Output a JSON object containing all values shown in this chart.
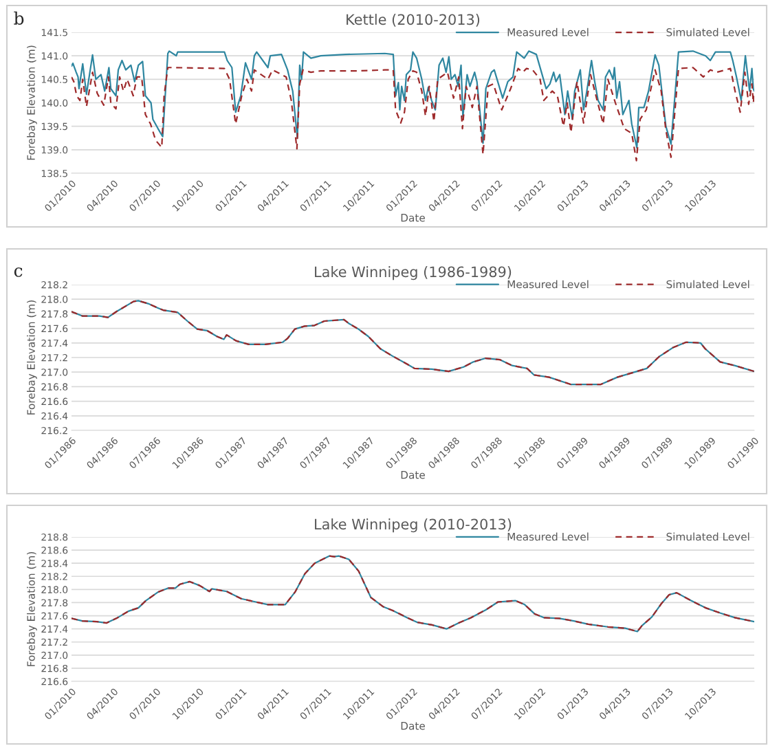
{
  "chart_data": [
    {
      "type": "line",
      "title": "Kettle (2010-2013)",
      "xlabel": "Date",
      "ylabel": "Forebay Elevation (m)",
      "annotations": [
        "b"
      ],
      "xlim": [
        "2010-01-01",
        "2013-12-31"
      ],
      "ylim": [
        138.5,
        141.5
      ],
      "yticks": [
        138.5,
        {
          "value": 139,
          "label": "139.0"
        },
        139.5,
        {
          "value": 140,
          "label": "140.0"
        },
        140.5,
        {
          "value": 141,
          "label": "141.0"
        },
        141.5
      ],
      "xticks": [
        {
          "value": "2010-01",
          "label": "01/2010"
        },
        {
          "value": "2010-04",
          "label": "04/2010"
        },
        {
          "value": "2010-07",
          "label": "07/2010"
        },
        {
          "value": "2010-10",
          "label": "10/2010"
        },
        {
          "value": "2011-01",
          "label": "01/2011"
        },
        {
          "value": "2011-04",
          "label": "04/2011"
        },
        {
          "value": "2011-07",
          "label": "07/2011"
        },
        {
          "value": "2011-10",
          "label": "10/2011"
        },
        {
          "value": "2012-01",
          "label": "01/2012"
        },
        {
          "value": "2012-04",
          "label": "04/2012"
        },
        {
          "value": "2012-07",
          "label": "07/2012"
        },
        {
          "value": "2012-10",
          "label": "10/2012"
        },
        {
          "value": "2013-01",
          "label": "01/2013"
        },
        {
          "value": "2013-04",
          "label": "04/2013"
        },
        {
          "value": "2013-07",
          "label": "07/2013"
        },
        {
          "value": "2013-10",
          "label": "10/2013"
        }
      ],
      "grid": "y",
      "legend": "top right",
      "marker": "none",
      "series": [
        {
          "name": "Measured Level",
          "color": "#2e86a0",
          "line_style": "solid",
          "x": [
            "2010-01-01",
            "2010-01-04",
            "2010-01-11",
            "2010-01-15",
            "2010-01-17",
            "2010-01-25",
            "2010-02-02",
            "2010-02-15",
            "2010-02-22",
            "2010-03-05",
            "2010-03-13",
            "2010-03-22",
            "2010-03-26",
            "2010-04-06",
            "2010-04-11",
            "2010-04-19",
            "2010-04-27",
            "2010-05-08",
            "2010-05-16",
            "2010-05-24",
            "2010-06-02",
            "2010-06-08",
            "2010-06-20",
            "2010-06-24",
            "2010-07-05",
            "2010-07-15",
            "2010-07-26",
            "2010-07-29",
            "2010-08-13",
            "2010-08-16",
            "2010-11-24",
            "2010-11-30",
            "2010-12-10",
            "2010-12-18",
            "2010-12-29",
            "2011-01-08",
            "2011-01-21",
            "2011-01-27",
            "2011-02-01",
            "2011-02-25",
            "2011-03-02",
            "2011-03-26",
            "2011-04-08",
            "2011-04-19",
            "2011-04-29",
            "2011-05-04",
            "2011-05-08",
            "2011-05-12",
            "2011-05-28",
            "2011-06-18",
            "2011-08-10",
            "2011-11-02",
            "2011-11-20",
            "2011-11-25",
            "2011-12-01",
            "2011-12-04",
            "2011-12-08",
            "2011-12-14",
            "2011-12-18",
            "2011-12-27",
            "2012-01-01",
            "2012-01-09",
            "2012-01-20",
            "2012-01-28",
            "2012-02-03",
            "2012-02-10",
            "2012-02-18",
            "2012-02-26",
            "2012-03-05",
            "2012-03-12",
            "2012-03-18",
            "2012-03-23",
            "2012-03-31",
            "2012-04-07",
            "2012-04-13",
            "2012-04-17",
            "2012-04-26",
            "2012-05-02",
            "2012-05-12",
            "2012-05-17",
            "2012-05-30",
            "2012-06-05",
            "2012-06-17",
            "2012-06-23",
            "2012-07-11",
            "2012-07-22",
            "2012-08-02",
            "2012-08-10",
            "2012-08-26",
            "2012-09-05",
            "2012-09-21",
            "2012-10-02",
            "2012-10-12",
            "2012-10-20",
            "2012-10-28",
            "2012-11-02",
            "2012-11-10",
            "2012-11-21",
            "2012-11-27",
            "2012-12-07",
            "2012-12-12",
            "2012-12-24",
            "2012-12-31",
            "2013-01-07",
            "2013-01-17",
            "2013-01-23",
            "2013-01-31",
            "2013-02-11",
            "2013-02-16",
            "2013-02-24",
            "2013-03-04",
            "2013-03-07",
            "2013-03-12",
            "2013-03-18",
            "2013-03-25",
            "2013-04-07",
            "2013-04-13",
            "2013-04-24",
            "2013-04-28",
            "2013-05-09",
            "2013-05-19",
            "2013-06-02",
            "2013-06-10",
            "2013-06-25",
            "2013-07-06",
            "2013-07-22",
            "2013-08-22",
            "2013-09-18",
            "2013-09-28",
            "2013-10-09",
            "2013-11-10",
            "2013-11-15",
            "2013-11-23",
            "2013-12-03",
            "2013-12-12",
            "2013-12-21",
            "2013-12-26",
            "2013-12-29",
            "2013-12-31"
          ],
          "values": [
            140.78,
            140.84,
            140.65,
            140.55,
            140.3,
            140.83,
            140.18,
            141.02,
            140.5,
            140.6,
            140.25,
            140.75,
            140.3,
            140.15,
            140.7,
            140.9,
            140.7,
            140.8,
            140.45,
            140.8,
            140.88,
            140.15,
            140.0,
            139.65,
            139.45,
            139.28,
            141.05,
            141.1,
            141.0,
            141.08,
            141.08,
            140.9,
            140.75,
            139.8,
            140.15,
            140.85,
            140.5,
            141.0,
            141.08,
            140.75,
            141.0,
            141.03,
            140.7,
            140.25,
            139.25,
            140.8,
            140.5,
            141.08,
            140.95,
            141.0,
            141.03,
            141.05,
            141.03,
            140.15,
            140.43,
            139.85,
            140.35,
            140.05,
            140.6,
            140.7,
            141.08,
            140.95,
            140.5,
            140.05,
            140.33,
            140.05,
            139.85,
            140.8,
            140.95,
            140.65,
            140.98,
            140.5,
            140.6,
            140.35,
            140.8,
            139.7,
            140.6,
            140.35,
            140.65,
            140.45,
            139.14,
            140.3,
            140.65,
            140.7,
            140.1,
            140.45,
            140.55,
            141.08,
            140.95,
            141.1,
            141.03,
            140.65,
            140.3,
            140.4,
            140.65,
            140.45,
            140.6,
            139.75,
            140.25,
            139.65,
            140.25,
            140.7,
            139.85,
            140.25,
            140.9,
            140.5,
            140.05,
            139.85,
            140.55,
            140.7,
            140.5,
            140.75,
            140.1,
            140.45,
            139.75,
            140.05,
            139.55,
            139.04,
            139.9,
            139.9,
            140.25,
            141.02,
            140.8,
            139.5,
            139.12,
            141.08,
            141.1,
            141.0,
            140.9,
            141.08,
            141.08,
            140.9,
            140.55,
            140.05,
            141.0,
            140.25,
            140.73,
            140.3,
            140.25
          ]
        },
        {
          "name": "Simulated Level",
          "color": "#9e2a2b",
          "line_style": "dashed",
          "x": [
            "2010-01-01",
            "2010-01-06",
            "2010-01-12",
            "2010-01-19",
            "2010-01-25",
            "2010-02-02",
            "2010-02-15",
            "2010-02-25",
            "2010-03-11",
            "2010-03-21",
            "2010-03-26",
            "2010-04-06",
            "2010-04-14",
            "2010-04-22",
            "2010-04-30",
            "2010-05-13",
            "2010-05-21",
            "2010-05-31",
            "2010-06-08",
            "2010-06-19",
            "2010-06-30",
            "2010-07-13",
            "2010-07-18",
            "2010-07-26",
            "2010-08-05",
            "2010-11-24",
            "2010-12-05",
            "2010-12-18",
            "2010-12-31",
            "2011-01-11",
            "2011-01-21",
            "2011-01-27",
            "2011-02-25",
            "2011-03-07",
            "2011-04-05",
            "2011-04-16",
            "2011-04-28",
            "2011-05-04",
            "2011-05-11",
            "2011-05-28",
            "2011-06-18",
            "2011-09-05",
            "2011-11-02",
            "2011-11-20",
            "2011-11-25",
            "2011-12-06",
            "2011-12-14",
            "2011-12-22",
            "2012-01-01",
            "2012-01-09",
            "2012-01-20",
            "2012-01-28",
            "2012-02-05",
            "2012-02-15",
            "2012-02-23",
            "2012-03-15",
            "2012-03-28",
            "2012-04-08",
            "2012-04-16",
            "2012-04-24",
            "2012-05-07",
            "2012-05-17",
            "2012-05-30",
            "2012-06-10",
            "2012-06-21",
            "2012-07-09",
            "2012-07-28",
            "2012-08-13",
            "2012-08-23",
            "2012-08-31",
            "2012-09-13",
            "2012-09-29",
            "2012-10-07",
            "2012-10-25",
            "2012-11-05",
            "2012-11-18",
            "2012-11-26",
            "2012-12-04",
            "2012-12-17",
            "2012-12-31",
            "2013-01-15",
            "2013-01-29",
            "2013-02-11",
            "2013-02-21",
            "2013-03-09",
            "2013-03-28",
            "2013-04-13",
            "2013-04-23",
            "2013-05-01",
            "2013-05-14",
            "2013-06-02",
            "2013-06-15",
            "2013-06-25",
            "2013-07-06",
            "2013-07-22",
            "2013-08-22",
            "2013-09-13",
            "2013-09-28",
            "2013-10-12",
            "2013-11-10",
            "2013-11-20",
            "2013-12-01",
            "2013-12-11",
            "2013-12-19",
            "2013-12-26",
            "2013-12-29",
            "2013-12-31"
          ],
          "values": [
            140.55,
            140.45,
            140.15,
            140.05,
            140.5,
            139.92,
            140.65,
            140.2,
            139.95,
            140.55,
            140.0,
            139.87,
            140.55,
            140.25,
            140.5,
            140.15,
            140.55,
            140.55,
            139.75,
            139.55,
            139.2,
            139.05,
            140.15,
            140.75,
            140.75,
            140.73,
            140.5,
            139.55,
            140.15,
            140.5,
            140.25,
            140.7,
            140.5,
            140.7,
            140.55,
            140.05,
            139.02,
            140.4,
            140.7,
            140.65,
            140.68,
            140.68,
            140.7,
            140.7,
            139.85,
            139.57,
            139.8,
            140.5,
            140.68,
            140.65,
            140.25,
            139.72,
            140.35,
            139.6,
            140.5,
            140.65,
            140.1,
            140.55,
            139.45,
            140.35,
            139.9,
            140.35,
            138.9,
            140.35,
            140.4,
            139.85,
            140.3,
            140.73,
            140.65,
            140.73,
            140.7,
            140.5,
            140.05,
            140.25,
            140.15,
            139.5,
            140.0,
            139.37,
            140.45,
            139.57,
            140.6,
            140.05,
            139.55,
            140.5,
            140.0,
            139.45,
            139.35,
            138.77,
            139.65,
            139.85,
            140.7,
            140.25,
            139.42,
            138.84,
            140.73,
            140.75,
            140.55,
            140.7,
            140.65,
            140.73,
            140.25,
            139.8,
            140.65,
            139.97,
            140.4,
            140.0,
            140.15
          ]
        }
      ]
    },
    {
      "type": "line",
      "title": "Lake Winnipeg (1986-1989)",
      "xlabel": "Date",
      "ylabel": "Forebay Elevation (m)",
      "annotations": [
        "c"
      ],
      "xlim": [
        "1986-01-01",
        "1990-01-01"
      ],
      "ylim": [
        216.2,
        218.2
      ],
      "yticks": [
        216.2,
        216.4,
        216.6,
        216.8,
        {
          "value": 217,
          "label": "217.0"
        },
        217.2,
        217.4,
        217.6,
        217.8,
        {
          "value": 218,
          "label": "218.0"
        },
        218.2
      ],
      "xticks": [
        {
          "value": "1986-01",
          "label": "01/1986"
        },
        {
          "value": "1986-04",
          "label": "04/1986"
        },
        {
          "value": "1986-07",
          "label": "07/1986"
        },
        {
          "value": "1986-10",
          "label": "10/1986"
        },
        {
          "value": "1987-01",
          "label": "01/1987"
        },
        {
          "value": "1987-04",
          "label": "04/1987"
        },
        {
          "value": "1987-07",
          "label": "07/1987"
        },
        {
          "value": "1987-10",
          "label": "10/1987"
        },
        {
          "value": "1988-01",
          "label": "01/1988"
        },
        {
          "value": "1988-04",
          "label": "04/1988"
        },
        {
          "value": "1988-07",
          "label": "07/1988"
        },
        {
          "value": "1988-10",
          "label": "10/1988"
        },
        {
          "value": "1989-01",
          "label": "01/1989"
        },
        {
          "value": "1989-04",
          "label": "04/1989"
        },
        {
          "value": "1989-07",
          "label": "07/1989"
        },
        {
          "value": "1989-10",
          "label": "10/1989"
        },
        {
          "value": "1990-01",
          "label": "01/1990"
        }
      ],
      "grid": "y",
      "legend": "top right",
      "marker": "none",
      "series": [
        {
          "name": "Measured Level",
          "color": "#2e86a0",
          "line_style": "solid",
          "x": [
            "1986-01-01",
            "1986-01-24",
            "1986-03-02",
            "1986-03-20",
            "1986-04-07",
            "1986-05-14",
            "1986-05-24",
            "1986-06-14",
            "1986-07-05",
            "1986-07-16",
            "1986-08-16",
            "1986-09-06",
            "1986-09-27",
            "1986-10-18",
            "1986-11-08",
            "1986-11-23",
            "1986-11-29",
            "1986-12-19",
            "1987-01-15",
            "1987-02-20",
            "1987-03-29",
            "1987-04-08",
            "1987-04-24",
            "1987-05-15",
            "1987-06-05",
            "1987-06-26",
            "1987-08-07",
            "1987-08-17",
            "1987-09-07",
            "1987-09-28",
            "1987-10-24",
            "1987-11-19",
            "1987-12-20",
            "1988-01-05",
            "1988-02-11",
            "1988-03-18",
            "1988-04-19",
            "1988-05-10",
            "1988-06-05",
            "1988-07-06",
            "1988-08-01",
            "1988-09-02",
            "1988-09-17",
            "1988-10-19",
            "1988-12-05",
            "1989-02-06",
            "1989-03-14",
            "1989-04-25",
            "1989-05-16",
            "1989-06-11",
            "1989-07-12",
            "1989-08-08",
            "1989-09-08",
            "1989-09-18",
            "1989-10-20",
            "1989-11-20",
            "1990-01-01"
          ],
          "values": [
            217.83,
            217.77,
            217.77,
            217.75,
            217.83,
            217.97,
            217.98,
            217.94,
            217.88,
            217.85,
            217.82,
            217.7,
            217.59,
            217.57,
            217.49,
            217.45,
            217.51,
            217.43,
            217.38,
            217.38,
            217.41,
            217.46,
            217.59,
            217.63,
            217.64,
            217.7,
            217.72,
            217.67,
            217.59,
            217.49,
            217.32,
            217.22,
            217.11,
            217.05,
            217.04,
            217.01,
            217.07,
            217.14,
            217.19,
            217.17,
            217.09,
            217.05,
            216.96,
            216.93,
            216.83,
            216.83,
            216.93,
            217.01,
            217.05,
            217.21,
            217.34,
            217.41,
            217.4,
            217.32,
            217.14,
            217.09,
            217.01
          ]
        },
        {
          "name": "Simulated Level",
          "color": "#9e2a2b",
          "line_style": "dashed",
          "x": [
            "1986-01-01",
            "1986-01-24",
            "1986-03-02",
            "1986-03-20",
            "1986-04-07",
            "1986-05-14",
            "1986-05-24",
            "1986-06-14",
            "1986-07-05",
            "1986-07-16",
            "1986-08-16",
            "1986-09-06",
            "1986-09-27",
            "1986-10-18",
            "1986-11-08",
            "1986-11-23",
            "1986-11-29",
            "1986-12-19",
            "1987-01-15",
            "1987-02-20",
            "1987-03-29",
            "1987-04-08",
            "1987-04-24",
            "1987-05-15",
            "1987-06-05",
            "1987-06-26",
            "1987-08-07",
            "1987-08-17",
            "1987-09-07",
            "1987-09-28",
            "1987-10-24",
            "1987-11-19",
            "1987-12-20",
            "1988-01-05",
            "1988-02-11",
            "1988-03-18",
            "1988-04-19",
            "1988-05-10",
            "1988-06-05",
            "1988-07-06",
            "1988-08-01",
            "1988-09-02",
            "1988-09-17",
            "1988-10-19",
            "1988-12-05",
            "1989-02-06",
            "1989-03-14",
            "1989-04-25",
            "1989-05-16",
            "1989-06-11",
            "1989-07-12",
            "1989-08-08",
            "1989-09-08",
            "1989-09-18",
            "1989-10-20",
            "1989-11-20",
            "1990-01-01"
          ],
          "values": [
            217.83,
            217.77,
            217.77,
            217.75,
            217.83,
            217.97,
            217.98,
            217.94,
            217.88,
            217.85,
            217.82,
            217.7,
            217.59,
            217.57,
            217.49,
            217.45,
            217.51,
            217.43,
            217.38,
            217.38,
            217.41,
            217.46,
            217.59,
            217.63,
            217.64,
            217.7,
            217.72,
            217.67,
            217.59,
            217.49,
            217.32,
            217.22,
            217.11,
            217.05,
            217.04,
            217.01,
            217.07,
            217.14,
            217.19,
            217.17,
            217.09,
            217.05,
            216.96,
            216.93,
            216.83,
            216.83,
            216.93,
            217.01,
            217.05,
            217.21,
            217.34,
            217.41,
            217.4,
            217.32,
            217.14,
            217.09,
            217.01
          ]
        }
      ]
    },
    {
      "type": "line",
      "title": "Lake Winnipeg (2010-2013)",
      "xlabel": "Date",
      "ylabel": "Forebay Elevation (m)",
      "xlim": [
        "2010-01-01",
        "2013-12-31"
      ],
      "ylim": [
        216.6,
        218.8
      ],
      "yticks": [
        216.6,
        216.8,
        {
          "value": 217,
          "label": "217.0"
        },
        217.2,
        217.4,
        217.6,
        217.8,
        {
          "value": 218,
          "label": "218.0"
        },
        218.2,
        218.4,
        218.6,
        218.8
      ],
      "xticks": [
        {
          "value": "2010-01",
          "label": "01/2010"
        },
        {
          "value": "2010-04",
          "label": "04/2010"
        },
        {
          "value": "2010-07",
          "label": "07/2010"
        },
        {
          "value": "2010-10",
          "label": "10/2010"
        },
        {
          "value": "2011-01",
          "label": "01/2011"
        },
        {
          "value": "2011-04",
          "label": "04/2011"
        },
        {
          "value": "2011-07",
          "label": "07/2011"
        },
        {
          "value": "2011-10",
          "label": "10/2011"
        },
        {
          "value": "2012-01",
          "label": "01/2012"
        },
        {
          "value": "2012-04",
          "label": "04/2012"
        },
        {
          "value": "2012-07",
          "label": "07/2012"
        },
        {
          "value": "2012-10",
          "label": "10/2012"
        },
        {
          "value": "2013-01",
          "label": "01/2013"
        },
        {
          "value": "2013-04",
          "label": "04/2013"
        },
        {
          "value": "2013-07",
          "label": "07/2013"
        },
        {
          "value": "2013-10",
          "label": "10/2013"
        }
      ],
      "grid": "y",
      "legend": "top right",
      "marker": "none",
      "series": [
        {
          "name": "Measured Level",
          "color": "#2e86a0",
          "line_style": "solid",
          "x": [
            "2010-01-01",
            "2010-01-24",
            "2010-02-24",
            "2010-03-17",
            "2010-04-07",
            "2010-05-03",
            "2010-05-24",
            "2010-06-09",
            "2010-07-05",
            "2010-07-26",
            "2010-08-11",
            "2010-08-21",
            "2010-09-11",
            "2010-10-02",
            "2010-10-23",
            "2010-10-28",
            "2010-11-29",
            "2010-12-30",
            "2011-01-30",
            "2011-02-25",
            "2011-04-03",
            "2011-04-24",
            "2011-05-15",
            "2011-06-05",
            "2011-07-06",
            "2011-07-17",
            "2011-07-27",
            "2011-08-17",
            "2011-09-07",
            "2011-10-03",
            "2011-10-29",
            "2011-11-19",
            "2011-12-20",
            "2012-01-10",
            "2012-02-11",
            "2012-03-13",
            "2012-04-08",
            "2012-05-04",
            "2012-06-05",
            "2012-07-01",
            "2012-08-07",
            "2012-08-27",
            "2012-09-17",
            "2012-10-08",
            "2012-11-09",
            "2012-12-10",
            "2013-01-10",
            "2013-02-21",
            "2013-03-30",
            "2013-04-25",
            "2013-05-05",
            "2013-05-26",
            "2013-06-16",
            "2013-07-02",
            "2013-07-18",
            "2013-08-18",
            "2013-09-18",
            "2013-10-20",
            "2013-11-20",
            "2013-12-31"
          ],
          "values": [
            217.56,
            217.52,
            217.51,
            217.49,
            217.56,
            217.67,
            217.72,
            217.83,
            217.96,
            218.02,
            218.02,
            218.08,
            218.12,
            218.06,
            217.97,
            218.01,
            217.97,
            217.86,
            217.81,
            217.77,
            217.77,
            217.96,
            218.24,
            218.4,
            218.51,
            218.5,
            218.51,
            218.46,
            218.28,
            217.88,
            217.74,
            217.68,
            217.57,
            217.5,
            217.46,
            217.4,
            217.49,
            217.57,
            217.69,
            217.81,
            217.83,
            217.77,
            217.63,
            217.57,
            217.56,
            217.52,
            217.47,
            217.43,
            217.41,
            217.36,
            217.45,
            217.58,
            217.79,
            217.92,
            217.95,
            217.83,
            217.72,
            217.64,
            217.57,
            217.51
          ]
        },
        {
          "name": "Simulated Level",
          "color": "#9e2a2b",
          "line_style": "dashed",
          "x": [
            "2010-01-01",
            "2010-01-24",
            "2010-02-24",
            "2010-03-17",
            "2010-04-07",
            "2010-05-03",
            "2010-05-24",
            "2010-06-09",
            "2010-07-05",
            "2010-07-26",
            "2010-08-11",
            "2010-08-21",
            "2010-09-11",
            "2010-10-02",
            "2010-10-23",
            "2010-10-28",
            "2010-11-29",
            "2010-12-30",
            "2011-01-30",
            "2011-02-25",
            "2011-04-03",
            "2011-04-24",
            "2011-05-15",
            "2011-06-05",
            "2011-07-06",
            "2011-07-17",
            "2011-07-27",
            "2011-08-17",
            "2011-09-07",
            "2011-10-03",
            "2011-10-29",
            "2011-11-19",
            "2011-12-20",
            "2012-01-10",
            "2012-02-11",
            "2012-03-13",
            "2012-04-08",
            "2012-05-04",
            "2012-06-05",
            "2012-07-01",
            "2012-08-07",
            "2012-08-27",
            "2012-09-17",
            "2012-10-08",
            "2012-11-09",
            "2012-12-10",
            "2013-01-10",
            "2013-02-21",
            "2013-03-30",
            "2013-04-25",
            "2013-05-05",
            "2013-05-26",
            "2013-06-16",
            "2013-07-02",
            "2013-07-18",
            "2013-08-18",
            "2013-09-18",
            "2013-10-20",
            "2013-11-20",
            "2013-12-31"
          ],
          "values": [
            217.56,
            217.52,
            217.51,
            217.49,
            217.56,
            217.67,
            217.72,
            217.83,
            217.96,
            218.02,
            218.02,
            218.08,
            218.12,
            218.06,
            217.97,
            218.01,
            217.97,
            217.86,
            217.81,
            217.77,
            217.77,
            217.96,
            218.24,
            218.4,
            218.51,
            218.5,
            218.51,
            218.46,
            218.28,
            217.88,
            217.74,
            217.68,
            217.57,
            217.5,
            217.46,
            217.4,
            217.49,
            217.57,
            217.69,
            217.81,
            217.83,
            217.77,
            217.63,
            217.57,
            217.56,
            217.52,
            217.47,
            217.43,
            217.41,
            217.36,
            217.45,
            217.58,
            217.79,
            217.92,
            217.95,
            217.83,
            217.72,
            217.64,
            217.57,
            217.51
          ]
        }
      ]
    }
  ]
}
